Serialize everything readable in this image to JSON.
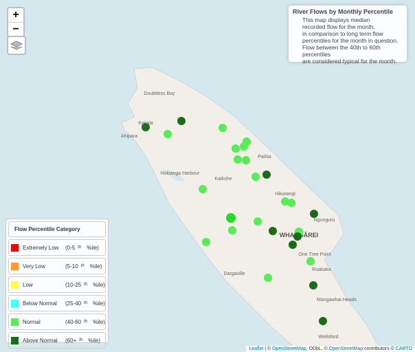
{
  "info": {
    "title": "River Flows by Monthly Percentile",
    "lines": [
      "This map displays median",
      "recorded flow for the month,",
      "in comparison to long term flow",
      "percentiles for the month in question.",
      "Flow between the 40th to 60th percentiles",
      "are considered typical for the month."
    ]
  },
  "legend": {
    "title": "Flow Percentile Category",
    "items": [
      {
        "name": "Extremely Low",
        "color": "#ff0000",
        "range_start": "(0-5",
        "sup": "th",
        "range_end": "%ile)"
      },
      {
        "name": "Very Low",
        "color": "#ff9933",
        "range_start": "(5-10",
        "sup": "th",
        "range_end": "%ile)"
      },
      {
        "name": "Low",
        "color": "#ffff44",
        "range_start": "(10-25",
        "sup": "th",
        "range_end": "%ile)"
      },
      {
        "name": "Below Normal",
        "color": "#44ffff",
        "range_start": "(25-40",
        "sup": "th",
        "range_end": "%ile)"
      },
      {
        "name": "Normal",
        "color": "#55ee55",
        "range_start": "(40-60",
        "sup": "th",
        "range_end": "%ile)"
      },
      {
        "name": "Above Normal",
        "color": "#1b6b1b",
        "range_start": "(60+",
        "sup": "th",
        "range_end": "%ile)"
      }
    ]
  },
  "controls": {
    "zoom_in": "+",
    "zoom_out": "−"
  },
  "map": {
    "labels": [
      "Doubtless Bay",
      "Kaitaia",
      "Ahipara",
      "Paihia",
      "Kaikohe",
      "Hokianga Harbour",
      "Hikurangi",
      "Ngunguru",
      "WHANGĀREI",
      "One Tree Point",
      "Ruakaka",
      "Dargaville",
      "Mangawhai Heads",
      "Wellsford"
    ]
  },
  "attribution": {
    "leaflet": "Leaflet",
    "sep": " | © ",
    "osm": "OpenStreetMap",
    "odbl": ", ODbL, © ",
    "osm2": "OpenStreetMap",
    "contrib": " contributors © ",
    "carto": "CARTO"
  }
}
